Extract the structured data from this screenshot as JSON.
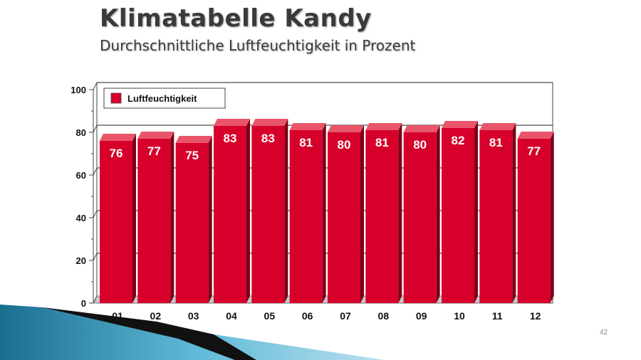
{
  "slide": {
    "title": "Klimatabelle Kandy",
    "subtitle": "Durchschnittliche Luftfeuchtigkeit in Prozent",
    "page_number": "42"
  },
  "colors": {
    "bar": "#d6002a",
    "bar_top": "#e8556a",
    "bar_side": "#7a0016",
    "accent": "#2a8bb0"
  },
  "chart_data": {
    "type": "bar",
    "title": "",
    "xlabel": "",
    "ylabel": "",
    "categories": [
      "01",
      "02",
      "03",
      "04",
      "05",
      "06",
      "07",
      "08",
      "09",
      "10",
      "11",
      "12"
    ],
    "series": [
      {
        "name": "Luftfeuchtigkeit",
        "values": [
          76,
          77,
          75,
          83,
          83,
          81,
          80,
          81,
          80,
          82,
          81,
          77
        ]
      }
    ],
    "ylim": [
      0,
      100
    ],
    "yticks": [
      0,
      20,
      40,
      60,
      80,
      100
    ],
    "grid": true,
    "legend": "top-left",
    "data_labels": true
  }
}
